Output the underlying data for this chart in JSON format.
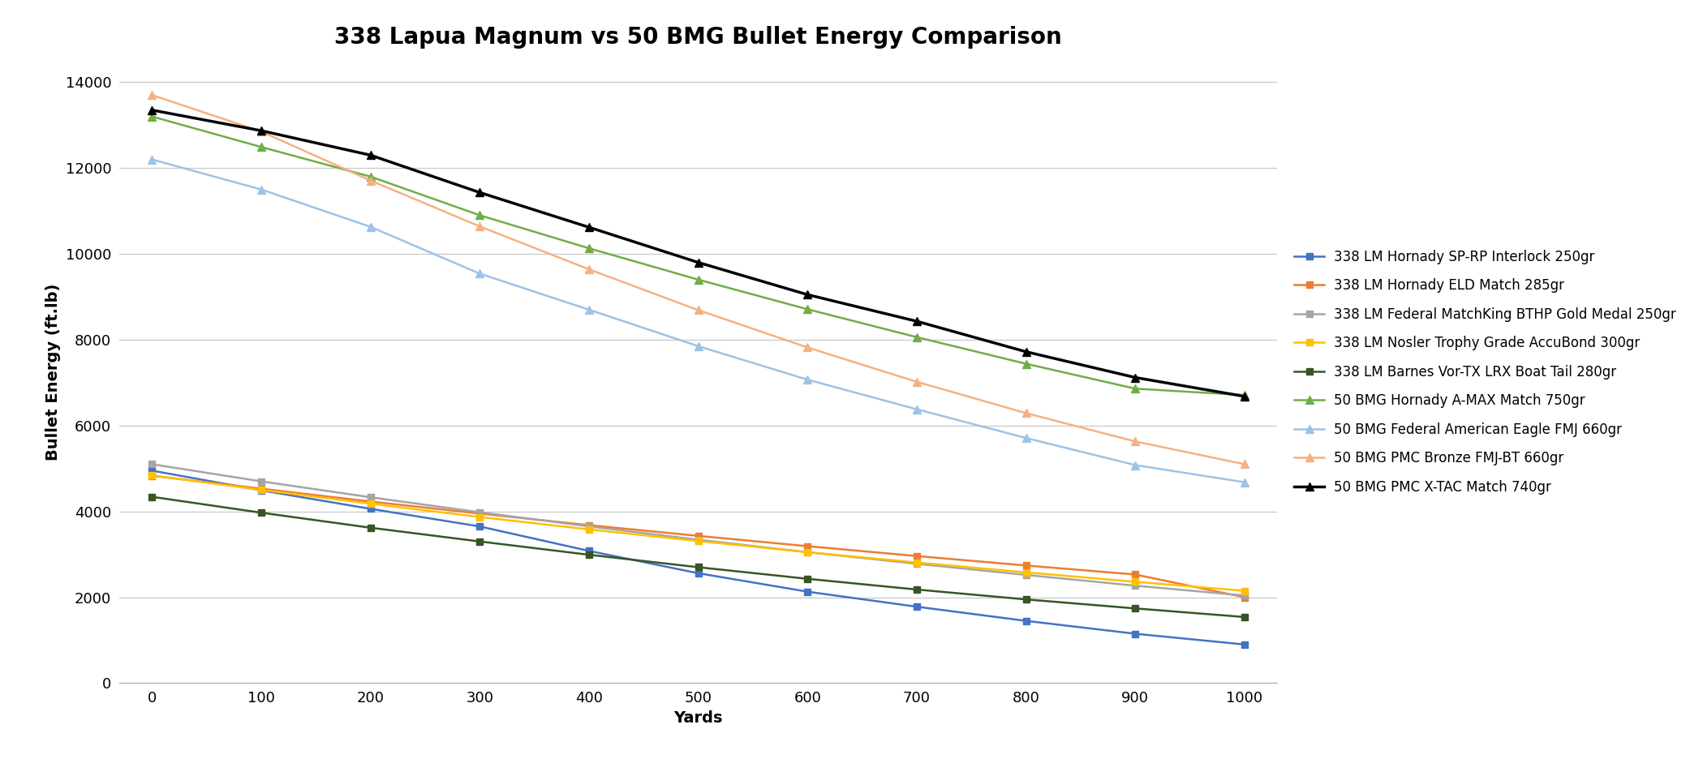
{
  "title": "338 Lapua Magnum vs 50 BMG Bullet Energy Comparison",
  "xlabel": "Yards",
  "ylabel": "Bullet Energy (ft.lb)",
  "yards": [
    0,
    100,
    200,
    300,
    400,
    500,
    600,
    700,
    800,
    900,
    1000
  ],
  "series": [
    {
      "label": "338 LM Hornady SP-RP Interlock 250gr",
      "color": "#4472C4",
      "marker": "s",
      "markersize": 6,
      "values": [
        4950,
        4490,
        4060,
        3650,
        3080,
        2560,
        2130,
        1780,
        1450,
        1150,
        900
      ],
      "linewidth": 1.8
    },
    {
      "label": "338 LM Hornady ELD Match 285gr",
      "color": "#ED7D31",
      "marker": "s",
      "markersize": 6,
      "values": [
        4830,
        4530,
        4230,
        3950,
        3680,
        3430,
        3190,
        2960,
        2740,
        2530,
        2000
      ],
      "linewidth": 1.8
    },
    {
      "label": "338 LM Federal MatchKing BTHP Gold Medal 250gr",
      "color": "#A5A5A5",
      "marker": "s",
      "markersize": 6,
      "values": [
        5100,
        4700,
        4330,
        3980,
        3650,
        3340,
        3050,
        2780,
        2520,
        2270,
        2040
      ],
      "linewidth": 1.8
    },
    {
      "label": "338 LM Nosler Trophy Grade AccuBond 300gr",
      "color": "#FFC000",
      "marker": "s",
      "markersize": 6,
      "values": [
        4840,
        4500,
        4180,
        3870,
        3580,
        3310,
        3050,
        2810,
        2580,
        2360,
        2150
      ],
      "linewidth": 1.8
    },
    {
      "label": "338 LM Barnes Vor-TX LRX Boat Tail 280gr",
      "color": "#375623",
      "marker": "s",
      "markersize": 6,
      "values": [
        4340,
        3970,
        3620,
        3300,
        2990,
        2700,
        2430,
        2180,
        1950,
        1740,
        1540
      ],
      "linewidth": 1.8
    },
    {
      "label": "50 BMG Hornady A-MAX Match 750gr",
      "color": "#70AD47",
      "marker": "^",
      "markersize": 7,
      "values": [
        13200,
        12490,
        11800,
        10900,
        10130,
        9400,
        8710,
        8060,
        7440,
        6860,
        6710
      ],
      "linewidth": 1.8
    },
    {
      "label": "50 BMG Federal American Eagle FMJ 660gr",
      "color": "#9DC3E6",
      "marker": "^",
      "markersize": 7,
      "values": [
        12200,
        11500,
        10630,
        9540,
        8700,
        7850,
        7070,
        6380,
        5710,
        5080,
        4680
      ],
      "linewidth": 1.8
    },
    {
      "label": "50 BMG PMC Bronze FMJ-BT 660gr",
      "color": "#F4B183",
      "marker": "^",
      "markersize": 7,
      "values": [
        13700,
        12850,
        11710,
        10640,
        9640,
        8690,
        7820,
        7020,
        6290,
        5630,
        5100
      ],
      "linewidth": 1.8
    },
    {
      "label": "50 BMG PMC X-TAC Match 740gr",
      "color": "#000000",
      "marker": "^",
      "markersize": 7,
      "values": [
        13350,
        12870,
        12300,
        11430,
        10620,
        9800,
        9050,
        8430,
        7720,
        7120,
        6680
      ],
      "linewidth": 2.5
    }
  ],
  "ylim": [
    0,
    14500
  ],
  "yticks": [
    0,
    2000,
    4000,
    6000,
    8000,
    10000,
    12000,
    14000
  ],
  "xlim": [
    -30,
    1030
  ],
  "xticks": [
    0,
    100,
    200,
    300,
    400,
    500,
    600,
    700,
    800,
    900,
    1000
  ],
  "background_color": "#FFFFFF",
  "plot_bg_color": "#FFFFFF",
  "grid_color": "#C8C8C8",
  "title_fontsize": 20,
  "axis_label_fontsize": 14,
  "tick_fontsize": 13,
  "legend_fontsize": 12
}
